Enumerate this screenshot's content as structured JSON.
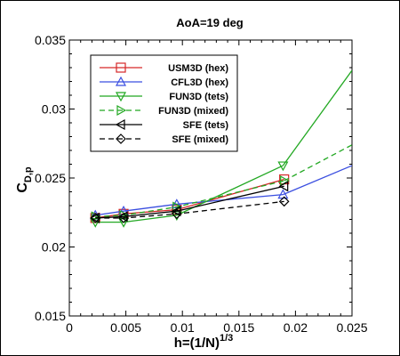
{
  "chart_data": {
    "type": "line",
    "title": "AoA=19 deg",
    "xlabel": {
      "main": "h=(1/N)",
      "sup": "1/3"
    },
    "ylabel": {
      "main": "C",
      "sub": "D,p"
    },
    "xlim": [
      0,
      0.025
    ],
    "ylim": [
      0.015,
      0.035
    ],
    "xticks": [
      "0",
      "0.005",
      "0.01",
      "0.015",
      "0.02",
      "0.025"
    ],
    "yticks": [
      "0.015",
      "0.02",
      "0.025",
      "0.03",
      "0.035"
    ],
    "grid": false,
    "legend_position": "top-left",
    "series": [
      {
        "name": "USM3D (hex)",
        "color": "#d62728",
        "marker": "square",
        "dash": "solid",
        "x": [
          0.0023,
          0.0048,
          0.0095,
          0.019
        ],
        "y": [
          0.0221,
          0.0224,
          0.0227,
          0.0249
        ],
        "extension": null
      },
      {
        "name": "CFL3D (hex)",
        "color": "#3b4fe0",
        "marker": "triangle-up",
        "dash": "solid",
        "x": [
          0.0023,
          0.0048,
          0.0095,
          0.0189
        ],
        "y": [
          0.0223,
          0.0226,
          0.0231,
          0.0238
        ],
        "extension": [
          0.025,
          0.0259
        ]
      },
      {
        "name": "FUN3D (tets)",
        "color": "#22a822",
        "marker": "triangle-down",
        "dash": "solid",
        "x": [
          0.0023,
          0.0048,
          0.0095,
          0.0189
        ],
        "y": [
          0.0218,
          0.0218,
          0.0223,
          0.0259
        ],
        "extension": [
          0.025,
          0.0328
        ]
      },
      {
        "name": "FUN3D (mixed)",
        "color": "#22a822",
        "marker": "triangle-right",
        "dash": "dashed",
        "x": [
          0.0023,
          0.0048,
          0.0095,
          0.019
        ],
        "y": [
          0.0222,
          0.0223,
          0.0229,
          0.0248
        ],
        "extension": [
          0.025,
          0.0274
        ]
      },
      {
        "name": "SFE (tets)",
        "color": "#000000",
        "marker": "triangle-left",
        "dash": "solid",
        "x": [
          0.0023,
          0.0048,
          0.0095,
          0.019
        ],
        "y": [
          0.0221,
          0.0222,
          0.0226,
          0.0244
        ],
        "extension": null
      },
      {
        "name": "SFE (mixed)",
        "color": "#000000",
        "marker": "diamond",
        "dash": "dashed",
        "x": [
          0.0023,
          0.0048,
          0.0095,
          0.019
        ],
        "y": [
          0.0221,
          0.0221,
          0.0224,
          0.0233
        ],
        "extension": null
      }
    ]
  }
}
